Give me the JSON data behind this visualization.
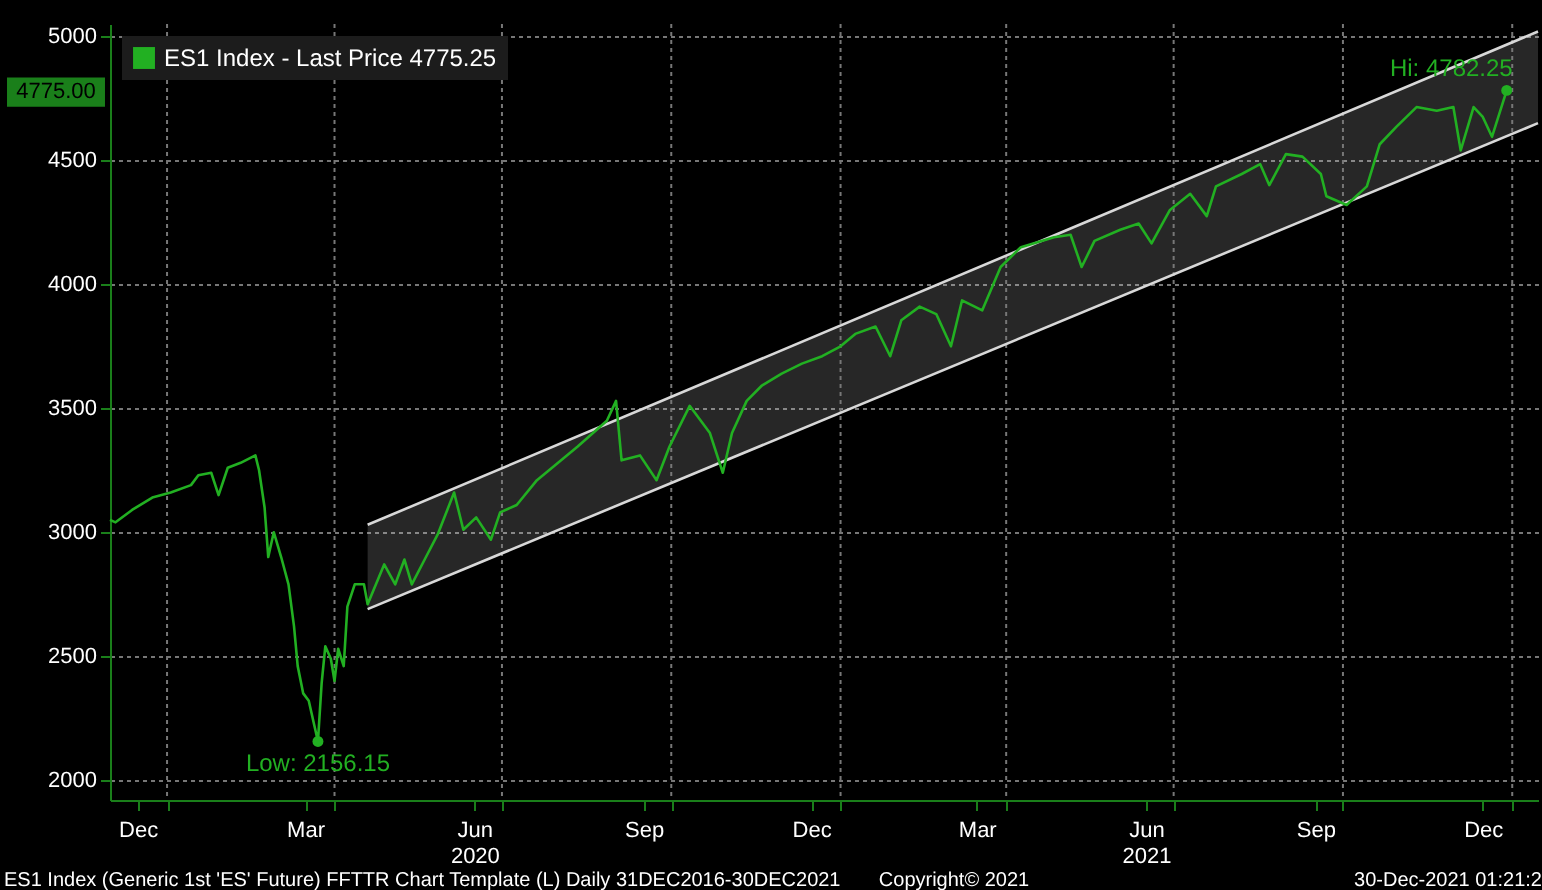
{
  "chart_data": {
    "type": "line",
    "series": [
      {
        "type": "line",
        "color": "#d8d8d8",
        "x": [
          "2020-04-19",
          "2022-01-15"
        ],
        "values": [
          3030,
          5020
        ],
        "lower": [
          2690,
          4650
        ],
        "upper": [
          3030,
          5020
        ]
      },
      {
        "type": "line",
        "color": "#d8d8d8",
        "x": [
          "2020-04-19",
          "2022-01-15"
        ],
        "values": [
          2690,
          4650
        ]
      },
      {
        "name": "ES1 Index - Last Price 4775.25",
        "color": "#22b022",
        "x": [
          "2019-12-01",
          "2019-12-04",
          "2019-12-13",
          "2019-12-24",
          "2020-01-03",
          "2020-01-14",
          "2020-01-18",
          "2020-01-25",
          "2020-01-29",
          "2020-02-03",
          "2020-02-10",
          "2020-02-18",
          "2020-02-20",
          "2020-02-23",
          "2020-02-25",
          "2020-02-28",
          "2020-03-03",
          "2020-03-07",
          "2020-03-10",
          "2020-03-12",
          "2020-03-15",
          "2020-03-18",
          "2020-03-23",
          "2020-03-25",
          "2020-03-27",
          "2020-03-30",
          "2020-04-01",
          "2020-04-03",
          "2020-04-06",
          "2020-04-08",
          "2020-04-12",
          "2020-04-17",
          "2020-04-19",
          "2020-04-28",
          "2020-05-04",
          "2020-05-09",
          "2020-05-13",
          "2020-05-20",
          "2020-05-27",
          "2020-06-05",
          "2020-06-10",
          "2020-06-17",
          "2020-06-25",
          "2020-06-30",
          "2020-07-09",
          "2020-07-20",
          "2020-08-11",
          "2020-08-27",
          "2020-09-01",
          "2020-09-04",
          "2020-09-14",
          "2020-09-23",
          "2020-09-30",
          "2020-10-11",
          "2020-10-22",
          "2020-10-29",
          "2020-11-03",
          "2020-11-11",
          "2020-11-19",
          "2020-11-30",
          "2020-12-11",
          "2020-12-22",
          "2021-01-01",
          "2021-01-09",
          "2021-01-20",
          "2021-01-28",
          "2021-02-03",
          "2021-02-13",
          "2021-02-22",
          "2021-03-02",
          "2021-03-08",
          "2021-03-19",
          "2021-03-29",
          "2021-04-09",
          "2021-04-27",
          "2021-05-06",
          "2021-05-12",
          "2021-05-19",
          "2021-06-02",
          "2021-06-12",
          "2021-06-19",
          "2021-06-29",
          "2021-07-10",
          "2021-07-19",
          "2021-07-24",
          "2021-08-07",
          "2021-08-17",
          "2021-08-22",
          "2021-08-31",
          "2021-09-09",
          "2021-09-19",
          "2021-09-22",
          "2021-10-03",
          "2021-10-14",
          "2021-10-21",
          "2021-10-30",
          "2021-11-10",
          "2021-11-21",
          "2021-11-30",
          "2021-12-04",
          "2021-12-11",
          "2021-12-16",
          "2021-12-21",
          "2021-12-29"
        ],
        "values": [
          3050,
          3040,
          3090,
          3140,
          3160,
          3190,
          3230,
          3240,
          3150,
          3260,
          3280,
          3310,
          3250,
          3100,
          2900,
          3000,
          2900,
          2790,
          2620,
          2460,
          2350,
          2320,
          2156.15,
          2390,
          2540,
          2490,
          2400,
          2530,
          2460,
          2700,
          2790,
          2790,
          2710,
          2870,
          2790,
          2890,
          2790,
          2890,
          2990,
          3160,
          3010,
          3060,
          2970,
          3080,
          3110,
          3210,
          3345,
          3450,
          3530,
          3290,
          3310,
          3210,
          3345,
          3510,
          3400,
          3240,
          3400,
          3530,
          3590,
          3640,
          3680,
          3710,
          3750,
          3800,
          3830,
          3710,
          3855,
          3910,
          3880,
          3750,
          3935,
          3895,
          4070,
          4150,
          4190,
          4200,
          4070,
          4175,
          4220,
          4245,
          4165,
          4300,
          4365,
          4275,
          4395,
          4445,
          4485,
          4400,
          4525,
          4515,
          4445,
          4355,
          4320,
          4395,
          4565,
          4635,
          4715,
          4700,
          4715,
          4540,
          4715,
          4675,
          4595,
          4782.25
        ]
      }
    ],
    "xlim": [
      "2019-12-01",
      "2022-01-15"
    ],
    "xticks": [
      {
        "value": "2019-12-16",
        "label": "Dec"
      },
      {
        "value": "2020-01-01",
        "label": null
      },
      {
        "value": "2020-03-16",
        "label": "Mar"
      },
      {
        "value": "2020-04-01",
        "label": null
      },
      {
        "value": "2020-06-16",
        "label": "Jun\n2020"
      },
      {
        "value": "2020-07-01",
        "label": null
      },
      {
        "value": "2020-09-16",
        "label": "Sep"
      },
      {
        "value": "2020-10-01",
        "label": null
      },
      {
        "value": "2020-12-16",
        "label": "Dec"
      },
      {
        "value": "2021-01-01",
        "label": null
      },
      {
        "value": "2021-03-16",
        "label": "Mar"
      },
      {
        "value": "2021-04-01",
        "label": null
      },
      {
        "value": "2021-06-16",
        "label": "Jun\n2021"
      },
      {
        "value": "2021-07-01",
        "label": null
      },
      {
        "value": "2021-09-16",
        "label": "Sep"
      },
      {
        "value": "2021-10-01",
        "label": null
      },
      {
        "value": "2021-12-16",
        "label": "Dec"
      },
      {
        "value": "2022-01-01",
        "label": null
      }
    ],
    "ylim": [
      1920,
      5050
    ],
    "yticks": [
      2000,
      2500,
      3000,
      3500,
      4000,
      {
        "value": 4775,
        "label": "4775.00"
      },
      4500,
      5000
    ],
    "grid": true,
    "legend": "top left",
    "annotations": [
      {
        "text": "Low: 2156.15",
        "x": "2020-03-23",
        "y": 2156.15
      },
      {
        "text": "Hi: 4782.25",
        "x": "2021-12-29",
        "y": 4782.25
      },
      "ES1 Index (Generic 1st 'ES' Future) FFTTR Chart Template (L)  Daily 31DEC2016-30DEC2021",
      "Copyright© 2021",
      "30-Dec-2021 01:21:2"
    ]
  }
}
